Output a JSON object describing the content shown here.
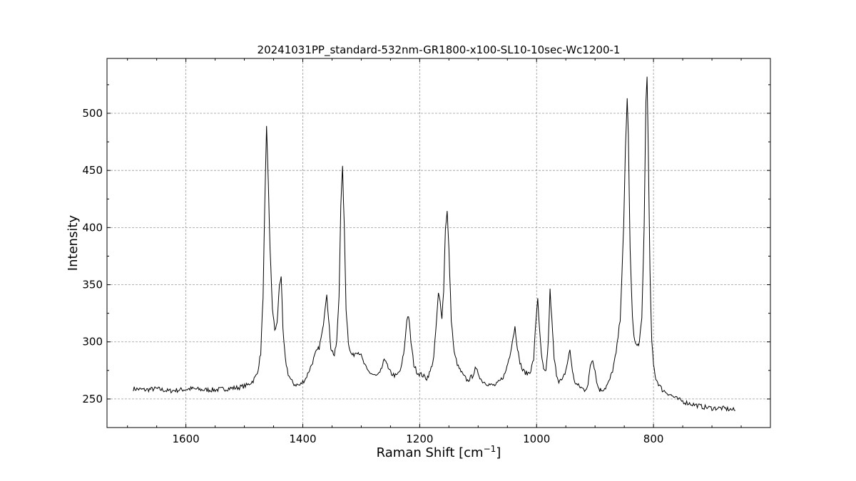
{
  "chart_data": {
    "type": "line",
    "title": "20241031PP_standard-532nm-GR1800-x100-SL10-10sec-Wc1200-1",
    "xlabel": "Raman Shift [cm",
    "xlabel_sup": "−1",
    "xlabel_close": "]",
    "ylabel": "Intensity",
    "xlim": [
      1735,
      600
    ],
    "ylim": [
      225,
      548
    ],
    "x_inverted": true,
    "grid": true,
    "x_ticks": [
      1600,
      1400,
      1200,
      1000,
      800
    ],
    "x_tick_labels": [
      "1600",
      "1400",
      "1200",
      "1000",
      "800"
    ],
    "y_ticks": [
      250,
      300,
      350,
      400,
      450,
      500
    ],
    "y_tick_labels": [
      "250",
      "300",
      "350",
      "400",
      "450",
      "500"
    ],
    "series": [
      {
        "color": "#000000",
        "x": [
          1690,
          1670,
          1650,
          1630,
          1610,
          1590,
          1570,
          1550,
          1530,
          1510,
          1495,
          1485,
          1478,
          1472,
          1468,
          1465,
          1462,
          1459,
          1456,
          1452,
          1448,
          1444,
          1440,
          1437,
          1434,
          1430,
          1425,
          1420,
          1415,
          1405,
          1395,
          1385,
          1378,
          1372,
          1366,
          1362,
          1359,
          1356,
          1352,
          1346,
          1342,
          1338,
          1335,
          1332,
          1329,
          1326,
          1322,
          1318,
          1314,
          1308,
          1302,
          1297,
          1290,
          1282,
          1275,
          1268,
          1262,
          1258,
          1254,
          1248,
          1240,
          1232,
          1226,
          1222,
          1219,
          1215,
          1210,
          1204,
          1196,
          1188,
          1182,
          1176,
          1171,
          1168,
          1165,
          1162,
          1159,
          1156,
          1153,
          1150,
          1146,
          1141,
          1134,
          1125,
          1118,
          1110,
          1105,
          1100,
          1094,
          1086,
          1078,
          1070,
          1062,
          1054,
          1046,
          1040,
          1037,
          1034,
          1030,
          1024,
          1016,
          1010,
          1005,
          1001,
          998,
          995,
          992,
          988,
          984,
          980,
          977,
          974,
          970,
          966,
          962,
          956,
          950,
          946,
          943,
          940,
          936,
          930,
          924,
          918,
          912,
          908,
          904,
          900,
          896,
          892,
          888,
          882,
          876,
          870,
          864,
          857,
          851,
          848,
          845,
          843,
          840,
          836,
          832,
          828,
          824,
          820,
          816,
          813,
          811,
          809,
          806,
          803,
          800,
          796,
          790,
          785,
          775,
          760,
          745,
          730,
          715,
          700,
          685,
          670,
          660
        ],
        "y": [
          259,
          258,
          259,
          257,
          258,
          259,
          258,
          258,
          259,
          260,
          262,
          266,
          272,
          290,
          340,
          420,
          487,
          440,
          380,
          330,
          310,
          316,
          350,
          358,
          310,
          285,
          272,
          266,
          263,
          262,
          268,
          280,
          290,
          295,
          310,
          330,
          343,
          320,
          295,
          288,
          300,
          340,
          420,
          452,
          400,
          330,
          300,
          290,
          288,
          292,
          290,
          283,
          275,
          272,
          270,
          272,
          282,
          285,
          276,
          272,
          270,
          276,
          295,
          320,
          323,
          300,
          280,
          273,
          271,
          268,
          274,
          286,
          320,
          342,
          335,
          322,
          345,
          400,
          414,
          380,
          320,
          290,
          278,
          270,
          266,
          270,
          276,
          273,
          266,
          264,
          262,
          262,
          266,
          272,
          288,
          305,
          313,
          300,
          285,
          275,
          272,
          275,
          285,
          320,
          339,
          310,
          290,
          275,
          273,
          300,
          345,
          320,
          285,
          272,
          266,
          266,
          275,
          285,
          293,
          280,
          266,
          262,
          260,
          258,
          262,
          280,
          285,
          275,
          262,
          258,
          258,
          260,
          265,
          275,
          290,
          320,
          400,
          470,
          513,
          480,
          380,
          320,
          300,
          296,
          300,
          320,
          400,
          510,
          534,
          470,
          360,
          300,
          280,
          268,
          262,
          258,
          255,
          250,
          247,
          245,
          243,
          242,
          242,
          241,
          240
        ]
      }
    ]
  }
}
